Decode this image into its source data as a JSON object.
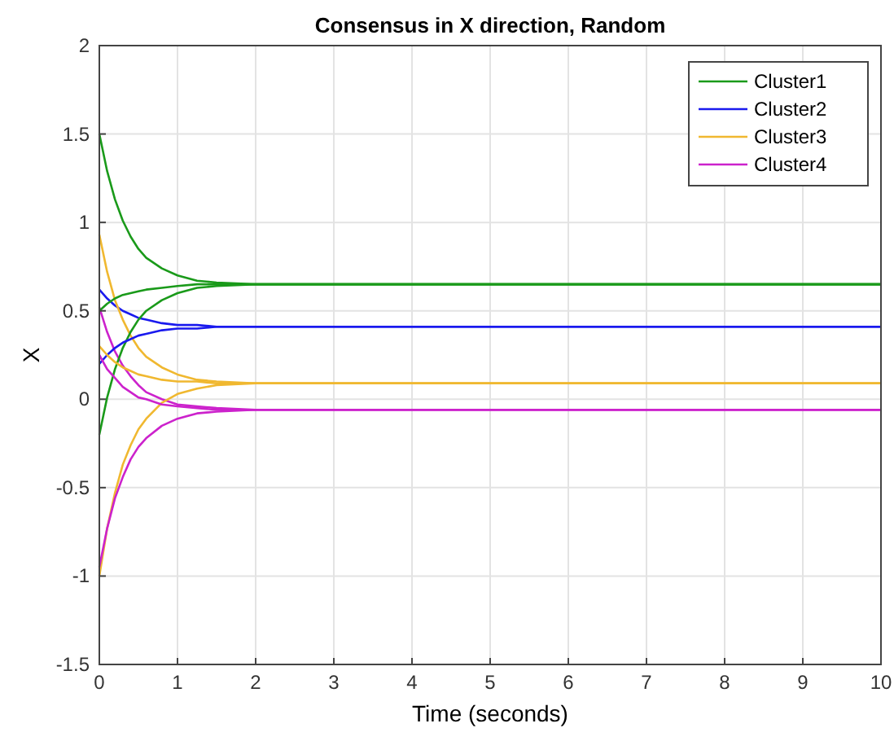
{
  "chart_data": {
    "type": "line",
    "title": "Consensus in X direction, Random",
    "xlabel": "Time (seconds)",
    "ylabel": "X",
    "x": [
      0,
      0.1,
      0.2,
      0.3,
      0.4,
      0.5,
      0.6,
      0.8,
      1.0,
      1.25,
      1.5,
      2,
      3,
      10
    ],
    "series": [
      {
        "name": "Cluster1",
        "color": "#1a9a1a",
        "values": [
          1.5,
          1.29,
          1.13,
          1.01,
          0.92,
          0.85,
          0.8,
          0.74,
          0.7,
          0.67,
          0.66,
          0.65,
          0.65,
          0.65
        ]
      },
      {
        "name": "Cluster2",
        "color": "#1a1aee",
        "values": [
          0.62,
          0.57,
          0.53,
          0.5,
          0.48,
          0.46,
          0.45,
          0.43,
          0.42,
          0.42,
          0.41,
          0.41,
          0.41,
          0.41
        ]
      },
      {
        "name": "Cluster3",
        "color": "#f0b830",
        "values": [
          0.93,
          0.72,
          0.56,
          0.45,
          0.36,
          0.29,
          0.24,
          0.18,
          0.14,
          0.11,
          0.1,
          0.09,
          0.09,
          0.09
        ]
      },
      {
        "name": "Cluster4",
        "color": "#cc22cc",
        "values": [
          0.52,
          0.38,
          0.27,
          0.19,
          0.13,
          0.08,
          0.04,
          0,
          -0.03,
          -0.04,
          -0.05,
          -0.06,
          -0.06,
          -0.06
        ]
      },
      {
        "color": "#1a9a1a",
        "values": [
          0.5,
          0.54,
          0.57,
          0.59,
          0.6,
          0.61,
          0.62,
          0.63,
          0.64,
          0.65,
          0.65,
          0.65,
          0.65,
          0.65
        ]
      },
      {
        "color": "#1a9a1a",
        "values": [
          -0.2,
          0.01,
          0.17,
          0.29,
          0.38,
          0.45,
          0.5,
          0.56,
          0.6,
          0.63,
          0.64,
          0.65,
          0.65,
          0.65
        ]
      },
      {
        "color": "#1a1aee",
        "values": [
          0.2,
          0.25,
          0.29,
          0.32,
          0.34,
          0.36,
          0.37,
          0.39,
          0.4,
          0.4,
          0.41,
          0.41,
          0.41,
          0.41
        ]
      },
      {
        "color": "#f0b830",
        "values": [
          0.3,
          0.25,
          0.21,
          0.18,
          0.16,
          0.14,
          0.13,
          0.11,
          0.1,
          0.1,
          0.09,
          0.09,
          0.09,
          0.09
        ]
      },
      {
        "color": "#f0b830",
        "values": [
          -1.0,
          -0.73,
          -0.53,
          -0.37,
          -0.26,
          -0.17,
          -0.11,
          -0.02,
          0.03,
          0.06,
          0.08,
          0.09,
          0.09,
          0.09
        ]
      },
      {
        "color": "#cc22cc",
        "values": [
          0.25,
          0.17,
          0.12,
          0.07,
          0.04,
          0.01,
          0,
          -0.03,
          -0.04,
          -0.05,
          -0.06,
          -0.06,
          -0.06,
          -0.06
        ]
      },
      {
        "color": "#cc22cc",
        "values": [
          -0.95,
          -0.73,
          -0.56,
          -0.44,
          -0.34,
          -0.27,
          -0.22,
          -0.15,
          -0.11,
          -0.08,
          -0.07,
          -0.06,
          -0.06,
          -0.06
        ]
      }
    ],
    "xlim": [
      0,
      10
    ],
    "xticks": [
      0,
      1,
      2,
      3,
      4,
      5,
      6,
      7,
      8,
      9,
      10
    ],
    "ylim": [
      -1.5,
      2
    ],
    "yticks": [
      -1.5,
      -1,
      -0.5,
      0,
      0.5,
      1,
      1.5,
      2
    ],
    "grid": true,
    "legend": "top right"
  }
}
